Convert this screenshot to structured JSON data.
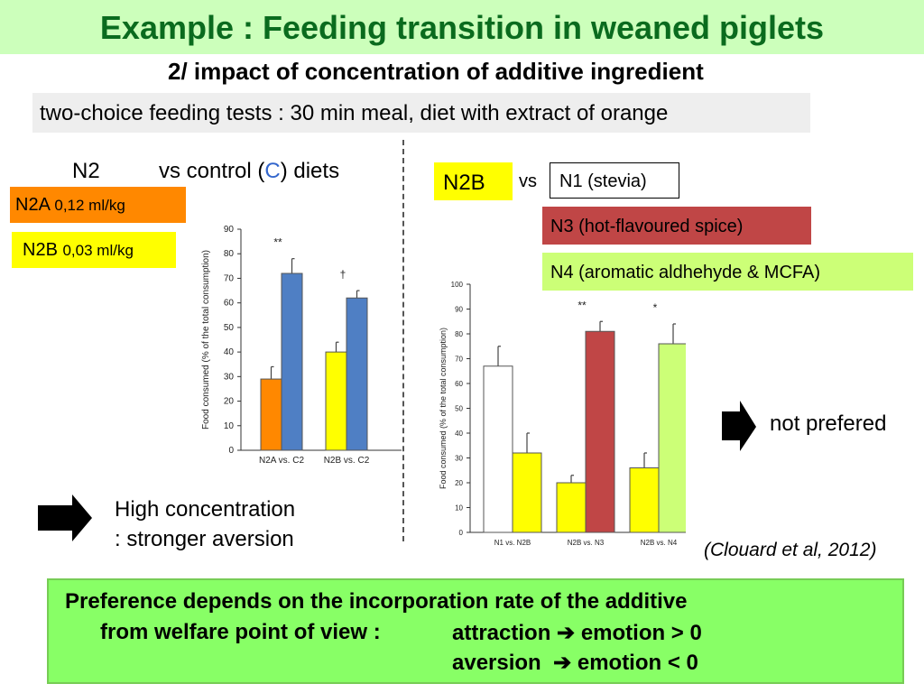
{
  "title": "Example : Feeding transition in weaned piglets",
  "subtitle": "2/ impact of concentration of additive ingredient",
  "method": "two-choice feeding tests : 30 min meal, diet with extract of orange",
  "left": {
    "header_n2": "N2",
    "header_vs_prefix": "vs control (",
    "header_c": "C",
    "header_vs_suffix": ") diets",
    "n2a_name": "N2A",
    "n2a_dose": "0,12 ml/kg",
    "n2b_name": "N2B",
    "n2b_dose": "0,03 ml/kg",
    "conclusion_line1": "High concentration",
    "conclusion_line2": ": stronger aversion"
  },
  "right": {
    "n2b_label": "N2B",
    "vs_label": "vs",
    "n1_label": "N1 (stevia)",
    "n3_label": "N3 (hot-flavoured spice)",
    "n4_label": "N4 (aromatic aldhehyde & MCFA)",
    "not_preferred": "not prefered",
    "citation": "(Clouard et al, 2012)"
  },
  "conclusion": {
    "line1": "Preference depends on the incorporation rate of the additive",
    "line2_prefix": "from welfare point of view :",
    "attraction": "attraction",
    "emotion_pos": "emotion > 0",
    "aversion": "aversion",
    "emotion_neg": "emotion < 0"
  },
  "colors": {
    "title_green": "#0a6b1e",
    "n2a_orange": "#ff8800",
    "n2b_yellow": "#ffff00",
    "control_blue": "#4f7fc4",
    "n3_red": "#c04646",
    "n4_green": "#ccff77",
    "conclusion_green": "#88ff66"
  },
  "chart_data": [
    {
      "type": "bar",
      "ylabel": "Food consumed (% of the total consumption)",
      "ylim": [
        0,
        90
      ],
      "yticks": [
        0,
        10,
        20,
        30,
        40,
        50,
        60,
        70,
        80,
        90
      ],
      "categories": [
        "N2A vs. C2",
        "N2B vs. C2"
      ],
      "bars": [
        {
          "group": 0,
          "name": "N2A",
          "value": 29,
          "err": 5,
          "color": "#ff8800"
        },
        {
          "group": 0,
          "name": "C2",
          "value": 72,
          "err": 6,
          "color": "#4f7fc4"
        },
        {
          "group": 1,
          "name": "N2B",
          "value": 40,
          "err": 4,
          "color": "#ffff00"
        },
        {
          "group": 1,
          "name": "C2",
          "value": 62,
          "err": 3,
          "color": "#4f7fc4"
        }
      ],
      "annotations": [
        {
          "group": 0,
          "text": "**"
        },
        {
          "group": 1,
          "text": "†"
        }
      ]
    },
    {
      "type": "bar",
      "ylabel": "Food consumed (% of the total consumption)",
      "ylim": [
        0,
        100
      ],
      "yticks": [
        0,
        10,
        20,
        30,
        40,
        50,
        60,
        70,
        80,
        90,
        100
      ],
      "categories": [
        "N1 vs. N2B",
        "N2B vs. N3",
        "N2B vs. N4"
      ],
      "bars": [
        {
          "group": 0,
          "name": "N1",
          "value": 67,
          "err": 8,
          "color": "#ffffff"
        },
        {
          "group": 0,
          "name": "N2B",
          "value": 32,
          "err": 8,
          "color": "#ffff00"
        },
        {
          "group": 1,
          "name": "N2B",
          "value": 20,
          "err": 3,
          "color": "#ffff00"
        },
        {
          "group": 1,
          "name": "N3",
          "value": 81,
          "err": 4,
          "color": "#c04646"
        },
        {
          "group": 2,
          "name": "N2B",
          "value": 26,
          "err": 6,
          "color": "#ffff00"
        },
        {
          "group": 2,
          "name": "N4",
          "value": 76,
          "err": 8,
          "color": "#ccff77"
        }
      ],
      "annotations": [
        {
          "group": 1,
          "text": "**"
        },
        {
          "group": 2,
          "text": "*"
        }
      ]
    }
  ]
}
